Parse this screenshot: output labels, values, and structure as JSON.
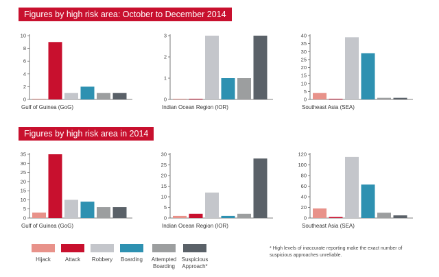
{
  "banners": {
    "quarter": "Figures by high risk area: October to December 2014",
    "year": "Figures by high risk area in 2014"
  },
  "legend": [
    {
      "label": "Hijack",
      "color": "#e8928a",
      "icon": "hijack-swatch"
    },
    {
      "label": "Attack",
      "color": "#c8102e",
      "icon": "attack-swatch"
    },
    {
      "label": "Robbery",
      "color": "#c4c6cb",
      "icon": "robbery-swatch"
    },
    {
      "label": "Boarding",
      "color": "#2e91b1",
      "icon": "boarding-swatch"
    },
    {
      "label": "Attempted\nBoarding",
      "color": "#9c9e9f",
      "icon": "attempted-boarding-swatch"
    },
    {
      "label": "Suspicious\nApproach*",
      "color": "#5a6168",
      "icon": "suspicious-approach-swatch"
    }
  ],
  "footnote": "* High levels of inaccurate reporting make the exact number of suspicious approaches unreliable.",
  "chart_data": [
    {
      "type": "bar",
      "title": "",
      "xlabel": "Gulf of Guinea (GoG)",
      "ylabel": "",
      "categories": [
        "Hijack",
        "Attack",
        "Robbery",
        "Boarding",
        "Attempted Boarding",
        "Suspicious Approach"
      ],
      "values": [
        0,
        9,
        1,
        2,
        1,
        1
      ],
      "ylim": [
        0,
        10
      ],
      "yticks": [
        0,
        2,
        4,
        6,
        8,
        10
      ]
    },
    {
      "type": "bar",
      "title": "",
      "xlabel": "Indian Ocean Region (IOR)",
      "ylabel": "",
      "categories": [
        "Hijack",
        "Attack",
        "Robbery",
        "Boarding",
        "Attempted Boarding",
        "Suspicious Approach"
      ],
      "values": [
        0,
        0,
        3,
        1,
        1,
        3
      ],
      "ylim": [
        0,
        3
      ],
      "yticks": [
        0,
        1,
        2,
        3
      ]
    },
    {
      "type": "bar",
      "title": "",
      "xlabel": "Southeast Asia (SEA)",
      "ylabel": "",
      "categories": [
        "Hijack",
        "Attack",
        "Robbery",
        "Boarding",
        "Attempted Boarding",
        "Suspicious Approach"
      ],
      "values": [
        4,
        0,
        39,
        29,
        1,
        1
      ],
      "ylim": [
        0,
        40
      ],
      "yticks": [
        0,
        5,
        10,
        15,
        20,
        25,
        30,
        35,
        40
      ]
    },
    {
      "type": "bar",
      "title": "",
      "xlabel": "Gulf of Guinea (GoG)",
      "ylabel": "",
      "categories": [
        "Hijack",
        "Attack",
        "Robbery",
        "Boarding",
        "Attempted Boarding",
        "Suspicious Approach"
      ],
      "values": [
        3,
        35,
        10,
        9,
        6,
        6
      ],
      "ylim": [
        0,
        35
      ],
      "yticks": [
        0,
        5,
        10,
        15,
        20,
        25,
        30,
        35
      ]
    },
    {
      "type": "bar",
      "title": "",
      "xlabel": "Indian Ocean Region (IOR)",
      "ylabel": "",
      "categories": [
        "Hijack",
        "Attack",
        "Robbery",
        "Boarding",
        "Attempted Boarding",
        "Suspicious Approach"
      ],
      "values": [
        1,
        2,
        12,
        1,
        2,
        28
      ],
      "ylim": [
        0,
        30
      ],
      "yticks": [
        0,
        5,
        10,
        15,
        20,
        25,
        30
      ]
    },
    {
      "type": "bar",
      "title": "",
      "xlabel": "Southeast Asia (SEA)",
      "ylabel": "",
      "categories": [
        "Hijack",
        "Attack",
        "Robbery",
        "Boarding",
        "Attempted Boarding",
        "Suspicious Approach"
      ],
      "values": [
        18,
        2,
        115,
        63,
        10,
        5
      ],
      "ylim": [
        0,
        120
      ],
      "yticks": [
        0,
        20,
        40,
        60,
        80,
        100,
        120
      ]
    }
  ]
}
